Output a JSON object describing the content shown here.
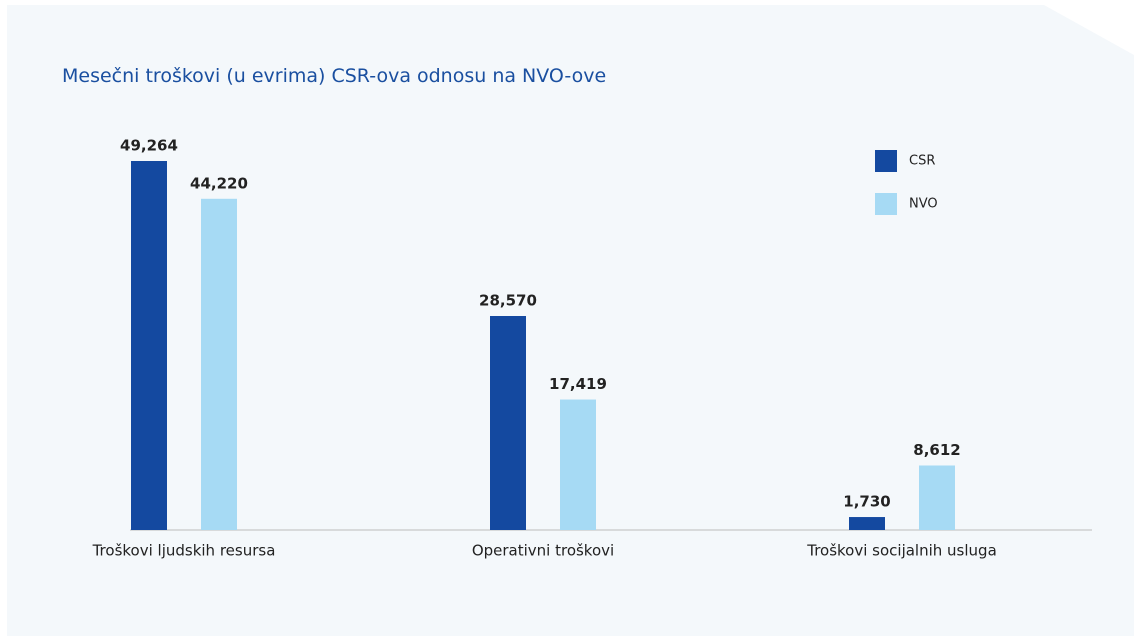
{
  "chart_data": {
    "type": "bar",
    "title": "Mesečni troškovi (u evrima) CSR-ova odnosu na NVO-ove",
    "categories": [
      "Troškovi ljudskih resursa",
      "Operativni troškovi",
      "Troškovi socijalnih usluga"
    ],
    "series": [
      {
        "name": "CSR",
        "color": "#1449a0",
        "values": [
          49264,
          28570,
          1730
        ],
        "value_labels": [
          "49,264",
          "28,570",
          "1,730"
        ]
      },
      {
        "name": "NVO",
        "color": "#a6daf4",
        "values": [
          44220,
          17419,
          8612
        ],
        "value_labels": [
          "44,220",
          "17,419",
          "8,612"
        ]
      }
    ],
    "legend": "top-right"
  }
}
